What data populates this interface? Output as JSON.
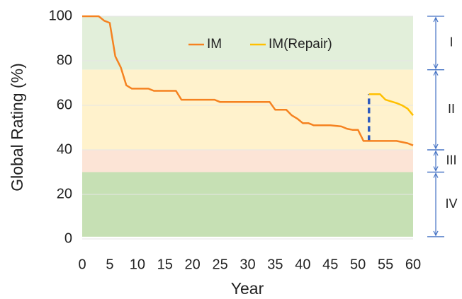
{
  "chart_data": {
    "type": "line",
    "x_label": "Year",
    "y_label": "Global Rating (%)",
    "xlim": [
      0,
      60
    ],
    "xticks": [
      0,
      5,
      10,
      15,
      20,
      25,
      30,
      35,
      40,
      45,
      50,
      55,
      60
    ],
    "ylim": [
      0,
      100
    ],
    "yticks": [
      0,
      20,
      40,
      60,
      80,
      100
    ],
    "grid": true,
    "bands": [
      {
        "label": "I",
        "from": 76,
        "to": 100,
        "color": "#e2efda"
      },
      {
        "label": "II",
        "from": 40,
        "to": 76,
        "color": "#fff2cc"
      },
      {
        "label": "III",
        "from": 30,
        "to": 40,
        "color": "#fce4d6"
      },
      {
        "label": "IV",
        "from": 1,
        "to": 30,
        "color": "#c6e0b4"
      }
    ],
    "bracket_color": "#4472c4",
    "series": [
      {
        "name": "IM",
        "color": "#f58220",
        "x": [
          0,
          3,
          4,
          5,
          6,
          7,
          8,
          9,
          12,
          13,
          17,
          18,
          24,
          25,
          34,
          35,
          37,
          38,
          39,
          40,
          41,
          42,
          45,
          47,
          48,
          49,
          50,
          51,
          52,
          57,
          58,
          59,
          60
        ],
        "values": [
          100,
          100,
          98,
          97,
          82,
          77,
          69,
          67.5,
          67.5,
          66.5,
          66.5,
          62.5,
          62.5,
          61.5,
          61.5,
          58,
          58,
          55.5,
          54,
          52,
          52,
          51,
          51,
          50.5,
          49.5,
          49,
          49,
          44,
          44,
          44,
          43.5,
          43,
          42
        ]
      },
      {
        "name": "IM(Repair)",
        "color": "#ffc000",
        "x": [
          52,
          54,
          55,
          57,
          58,
          59,
          60
        ],
        "values": [
          65,
          65,
          62.5,
          61,
          60,
          58.5,
          55.5
        ]
      }
    ],
    "repair_jump_color": "#2e5bbf"
  }
}
